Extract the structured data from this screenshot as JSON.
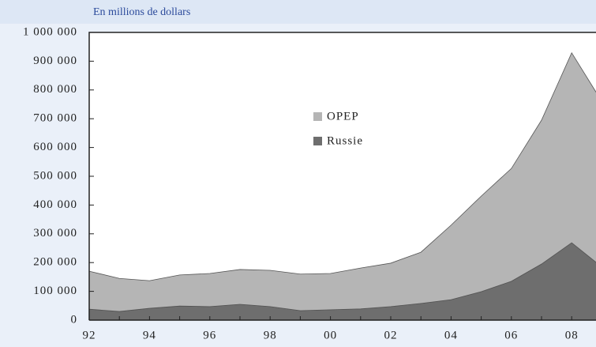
{
  "chart_data": {
    "type": "stacked-area",
    "subtitle": "En millions de dollars",
    "categories": [
      "92",
      null,
      "94",
      null,
      "96",
      null,
      "98",
      null,
      "00",
      null,
      "02",
      null,
      "04",
      null,
      "06",
      null,
      "08",
      null
    ],
    "series": [
      {
        "name": "OPEP",
        "color": "#b5b5b5",
        "values": [
          132000,
          115000,
          96000,
          108000,
          115000,
          121000,
          126000,
          127000,
          126000,
          142000,
          151000,
          178000,
          259000,
          332000,
          392000,
          500000,
          660000,
          575000
        ]
      },
      {
        "name": "Russie",
        "color": "#6e6e6e",
        "values": [
          38000,
          30000,
          41000,
          49000,
          47000,
          55000,
          47000,
          33000,
          36000,
          39000,
          47000,
          58000,
          71000,
          99000,
          135000,
          195000,
          269000,
          185000
        ]
      }
    ],
    "ylim": [
      0,
      1000000
    ],
    "yticks": [
      0,
      {
        "value": 100000,
        "label": "100 000"
      },
      {
        "value": 200000,
        "label": "200 000"
      },
      {
        "value": 300000,
        "label": "300 000"
      },
      {
        "value": 400000,
        "label": "400 000"
      },
      {
        "value": 500000,
        "label": "500 000"
      },
      {
        "value": 600000,
        "label": "600 000"
      },
      {
        "value": 700000,
        "label": "700 000"
      },
      {
        "value": 800000,
        "label": "800 000"
      },
      {
        "value": 900000,
        "label": "900 000"
      },
      {
        "value": 1000000,
        "label": "1 000 000"
      }
    ],
    "grid": false,
    "legend": "center"
  }
}
